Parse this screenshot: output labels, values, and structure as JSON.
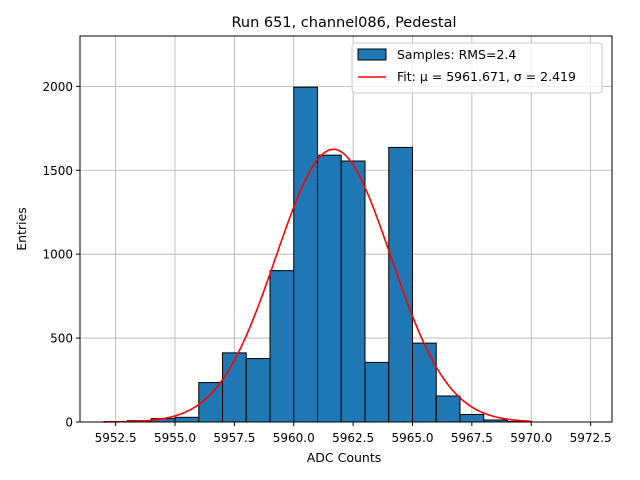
{
  "chart_data": {
    "type": "bar",
    "title": "Run 651, channel086, Pedestal",
    "xlabel": "ADC Counts",
    "ylabel": "Entries",
    "xlim": [
      5951,
      5973.4
    ],
    "ylim": [
      0,
      2300
    ],
    "grid": true,
    "legend_position": "top-right",
    "x_ticks": [
      5952.5,
      5955.0,
      5957.5,
      5960.0,
      5962.5,
      5965.0,
      5967.5,
      5970.0,
      5972.5
    ],
    "x_tick_labels": [
      "5952.5",
      "5955.0",
      "5957.5",
      "5960.0",
      "5962.5",
      "5965.0",
      "5967.5",
      "5970.0",
      "5972.5"
    ],
    "y_ticks": [
      0,
      500,
      1000,
      1500,
      2000
    ],
    "y_tick_labels": [
      "0",
      "500",
      "1000",
      "1500",
      "2000"
    ],
    "histogram": {
      "name": "Samples: RMS=2.4",
      "bin_edges": [
        5952,
        5953,
        5954,
        5955,
        5956,
        5957,
        5958,
        5959,
        5960,
        5961,
        5962,
        5963,
        5964,
        5965,
        5966,
        5967,
        5968,
        5969,
        5970
      ],
      "counts": [
        2,
        8,
        20,
        28,
        235,
        412,
        378,
        902,
        1995,
        1590,
        1555,
        355,
        1636,
        470,
        155,
        45,
        12,
        3
      ],
      "color": "#1f77b4",
      "edge_color": "#000000"
    },
    "fit": {
      "name": "Fit: μ = 5961.671, σ = 2.419",
      "mu": 5961.671,
      "sigma": 2.419,
      "amplitude": 1625,
      "x_range": [
        5952,
        5970
      ],
      "color": "#ff0000"
    }
  }
}
